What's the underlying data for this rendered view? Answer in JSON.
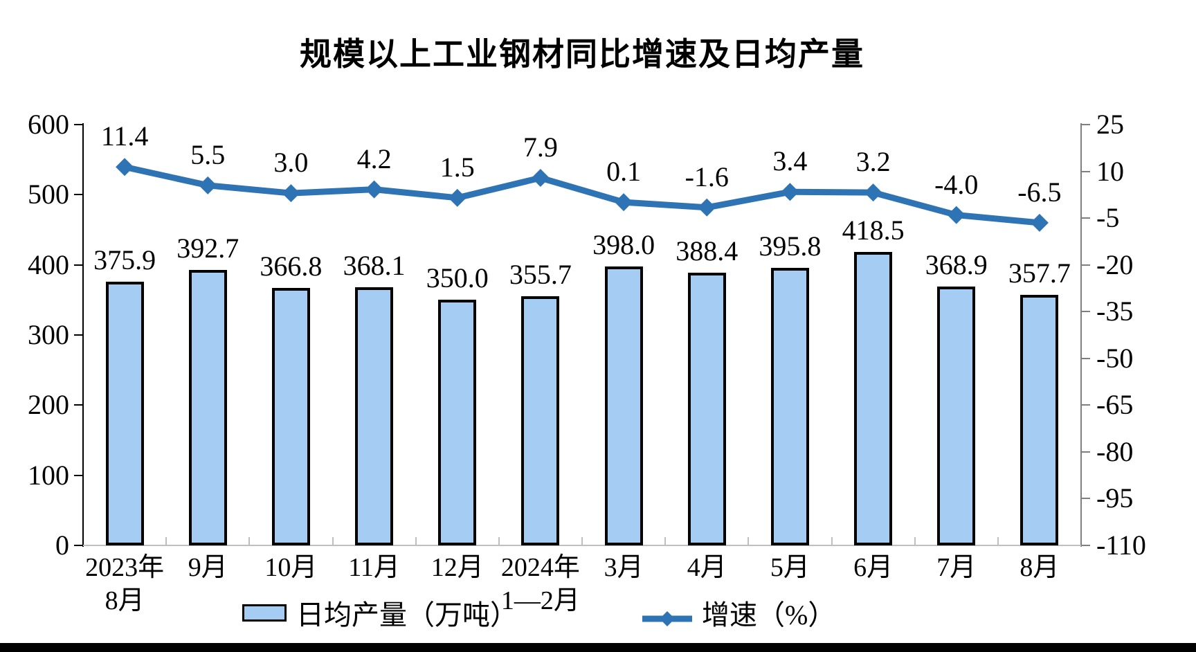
{
  "title": "规模以上工业钢材同比增速及日均产量",
  "chart_data": {
    "type": "bar",
    "subtype": "bar+line dual-axis combo",
    "categories": [
      [
        "2023年",
        "8月"
      ],
      [
        "9月"
      ],
      [
        "10月"
      ],
      [
        "11月"
      ],
      [
        "12月"
      ],
      [
        "2024年",
        "1—2月"
      ],
      [
        "3月"
      ],
      [
        "4月"
      ],
      [
        "5月"
      ],
      [
        "6月"
      ],
      [
        "7月"
      ],
      [
        "8月"
      ]
    ],
    "series": [
      {
        "name": "日均产量（万吨）",
        "type": "bar",
        "axis": "left",
        "values": [
          375.9,
          392.7,
          366.8,
          368.1,
          350.0,
          355.7,
          398.0,
          388.4,
          395.8,
          418.5,
          368.9,
          357.7
        ],
        "labels": [
          "375.9",
          "392.7",
          "366.8",
          "368.1",
          "350.0",
          "355.7",
          "398.0",
          "388.4",
          "395.8",
          "418.5",
          "368.9",
          "357.7"
        ]
      },
      {
        "name": "增速（%）",
        "type": "line",
        "axis": "right",
        "marker": "diamond",
        "values": [
          11.4,
          5.5,
          3.0,
          4.2,
          1.5,
          7.9,
          0.1,
          -1.6,
          3.4,
          3.2,
          -4.0,
          -6.5
        ],
        "labels": [
          "11.4",
          "5.5",
          "3.0",
          "4.2",
          "1.5",
          "7.9",
          "0.1",
          "-1.6",
          "3.4",
          "3.2",
          "-4.0",
          "-6.5"
        ]
      }
    ],
    "left_axis": {
      "min": 0,
      "max": 600,
      "step": 100,
      "tick_labels": [
        "600",
        "500",
        "400",
        "300",
        "200",
        "100",
        "0"
      ]
    },
    "right_axis": {
      "min": -110,
      "max": 25,
      "step": 15,
      "tick_labels": [
        "25",
        "10",
        "-5",
        "-20",
        "-35",
        "-50",
        "-65",
        "-80",
        "-95",
        "-110"
      ]
    },
    "grid": "off",
    "legend_position": "bottom",
    "legend": [
      {
        "label": "日均产量（万吨）",
        "swatch": "bar"
      },
      {
        "label": "增速（%）",
        "swatch": "line-diamond"
      }
    ],
    "colors": {
      "bar_fill": "#A5CCF3",
      "bar_border": "#000000",
      "line": "#2E74B5",
      "left_axis_line": "#000000",
      "right_axis_line": "#7F7F7F",
      "bottom_axis_line": "#BFBFBF",
      "text": "#000000"
    }
  }
}
